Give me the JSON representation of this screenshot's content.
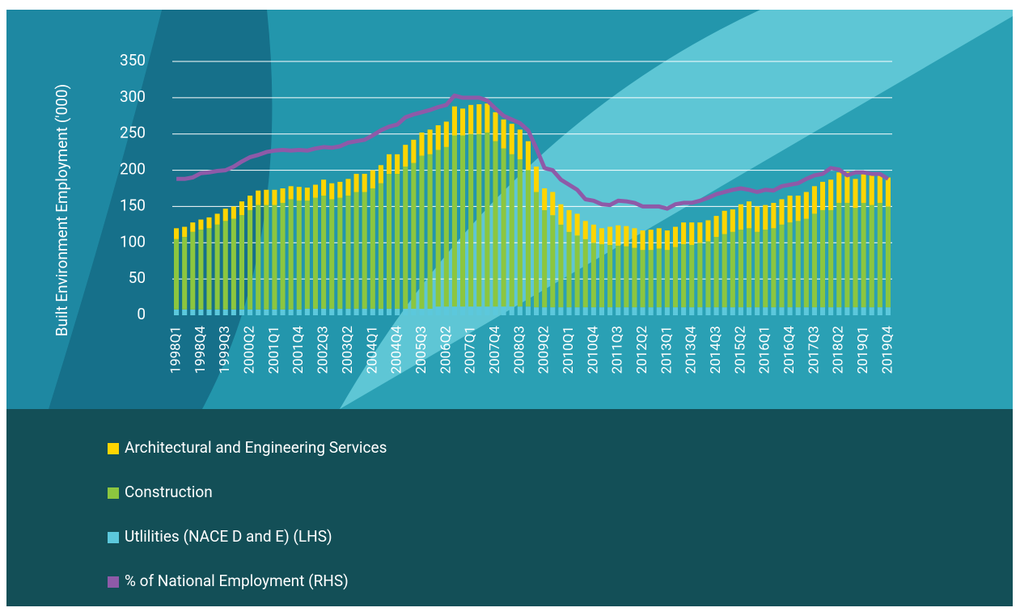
{
  "chart_data": {
    "type": "bar",
    "stacked": true,
    "y_label": "Built Environment Employment ('000)",
    "categories": [
      "1998Q1",
      null,
      null,
      "1998Q4",
      null,
      null,
      "1999Q3",
      null,
      null,
      "2000Q2",
      null,
      null,
      "2001Q1",
      null,
      null,
      "2001Q4",
      null,
      null,
      "2002Q3",
      null,
      null,
      "2003Q2",
      null,
      null,
      "2004Q1",
      null,
      null,
      "2004Q4",
      null,
      null,
      "2005Q3",
      null,
      null,
      "2006Q2",
      null,
      null,
      "2007Q1",
      null,
      null,
      "2007Q4",
      null,
      null,
      "2008Q3",
      null,
      null,
      "2009Q2",
      null,
      null,
      "2010Q1",
      null,
      null,
      "2010Q4",
      null,
      null,
      "2011Q3",
      null,
      null,
      "2012Q2",
      null,
      null,
      "2013Q1",
      null,
      null,
      "2013Q4",
      null,
      null,
      "2014Q3",
      null,
      null,
      "2015Q2",
      null,
      null,
      "2016Q1",
      null,
      null,
      "2016Q4",
      null,
      null,
      "2017Q3",
      null,
      null,
      "2018Q2",
      null,
      null,
      "2019Q1",
      null,
      null,
      "2019Q4"
    ],
    "ylim": [
      0,
      350
    ],
    "yticks": [
      0,
      50,
      100,
      150,
      200,
      250,
      300,
      350
    ],
    "grid": true,
    "y2lim": [
      0,
      17.5
    ],
    "series": [
      {
        "name": "Architectural and Engineering Services",
        "color": "#ffd500",
        "values": [
          15,
          14,
          13,
          14,
          15,
          15,
          17,
          17,
          19,
          20,
          20,
          21,
          21,
          20,
          18,
          19,
          18,
          18,
          22,
          22,
          22,
          23,
          25,
          25,
          25,
          25,
          27,
          27,
          30,
          32,
          32,
          34,
          34,
          35,
          40,
          37,
          40,
          41,
          40,
          40,
          40,
          42,
          41,
          40,
          35,
          30,
          32,
          28,
          30,
          30,
          25,
          25,
          22,
          25,
          28,
          28,
          27,
          27,
          28,
          28,
          27,
          28,
          30,
          31,
          28,
          29,
          29,
          32,
          31,
          35,
          37,
          35,
          34,
          35,
          35,
          37,
          35,
          37,
          38,
          39,
          42,
          42,
          43,
          40,
          41,
          41,
          40,
          40
        ]
      },
      {
        "name": "Construction",
        "color": "#8cc63f",
        "values": [
          97,
          100,
          107,
          110,
          112,
          117,
          122,
          125,
          130,
          137,
          144,
          144,
          144,
          147,
          152,
          150,
          149,
          153,
          156,
          151,
          153,
          156,
          161,
          161,
          166,
          173,
          186,
          186,
          196,
          201,
          211,
          213,
          216,
          220,
          236,
          236,
          238,
          238,
          240,
          228,
          218,
          210,
          203,
          188,
          159,
          134,
          127,
          114,
          104,
          99,
          94,
          89,
          87,
          86,
          85,
          84,
          82,
          79,
          79,
          81,
          79,
          83,
          87,
          86,
          89,
          91,
          97,
          101,
          104,
          107,
          109,
          104,
          107,
          109,
          114,
          117,
          119,
          122,
          129,
          134,
          134,
          144,
          144,
          137,
          144,
          141,
          144,
          139
        ]
      },
      {
        "name": "Utlilities (NACE D and E) (LHS)",
        "color": "#5cc8dc",
        "values": [
          8,
          8,
          8,
          8,
          8,
          8,
          8,
          8,
          8,
          8,
          8,
          8,
          8,
          8,
          8,
          8,
          9,
          9,
          9,
          9,
          9,
          9,
          9,
          9,
          9,
          9,
          9,
          9,
          9,
          9,
          9,
          9,
          12,
          12,
          12,
          12,
          12,
          12,
          12,
          12,
          12,
          12,
          12,
          12,
          11,
          11,
          11,
          11,
          11,
          11,
          11,
          11,
          11,
          11,
          11,
          11,
          11,
          11,
          11,
          11,
          11,
          11,
          11,
          11,
          11,
          11,
          11,
          11,
          11,
          11,
          11,
          11,
          11,
          11,
          11,
          11,
          11,
          11,
          11,
          11,
          11,
          11,
          11,
          11,
          11,
          11,
          11,
          11
        ]
      },
      {
        "name": "% of National Employment (RHS)",
        "color": "#8e5aa8",
        "type": "line",
        "axis": "y2",
        "values": [
          9.4,
          9.4,
          9.5,
          9.8,
          9.85,
          9.95,
          10,
          10.25,
          10.6,
          10.9,
          11.05,
          11.25,
          11.35,
          11.4,
          11.35,
          11.4,
          11.35,
          11.5,
          11.6,
          11.55,
          11.65,
          11.9,
          12,
          12.1,
          12.4,
          12.75,
          13,
          13.15,
          13.65,
          13.85,
          14,
          14.15,
          14.35,
          14.5,
          15.15,
          15,
          15,
          15,
          14.8,
          14.25,
          13.75,
          13.5,
          13.25,
          12.75,
          11.5,
          10.15,
          10,
          9.35,
          9,
          8.65,
          8,
          7.9,
          7.65,
          7.6,
          7.9,
          7.85,
          7.75,
          7.5,
          7.5,
          7.5,
          7.35,
          7.65,
          7.75,
          7.75,
          7.9,
          8.1,
          8.35,
          8.5,
          8.65,
          8.75,
          8.65,
          8.5,
          8.65,
          8.6,
          8.9,
          9,
          9.1,
          9.4,
          9.65,
          9.75,
          10.15,
          10.05,
          9.65,
          9.85,
          9.85,
          9.75,
          9.75,
          9.4
        ]
      }
    ]
  }
}
